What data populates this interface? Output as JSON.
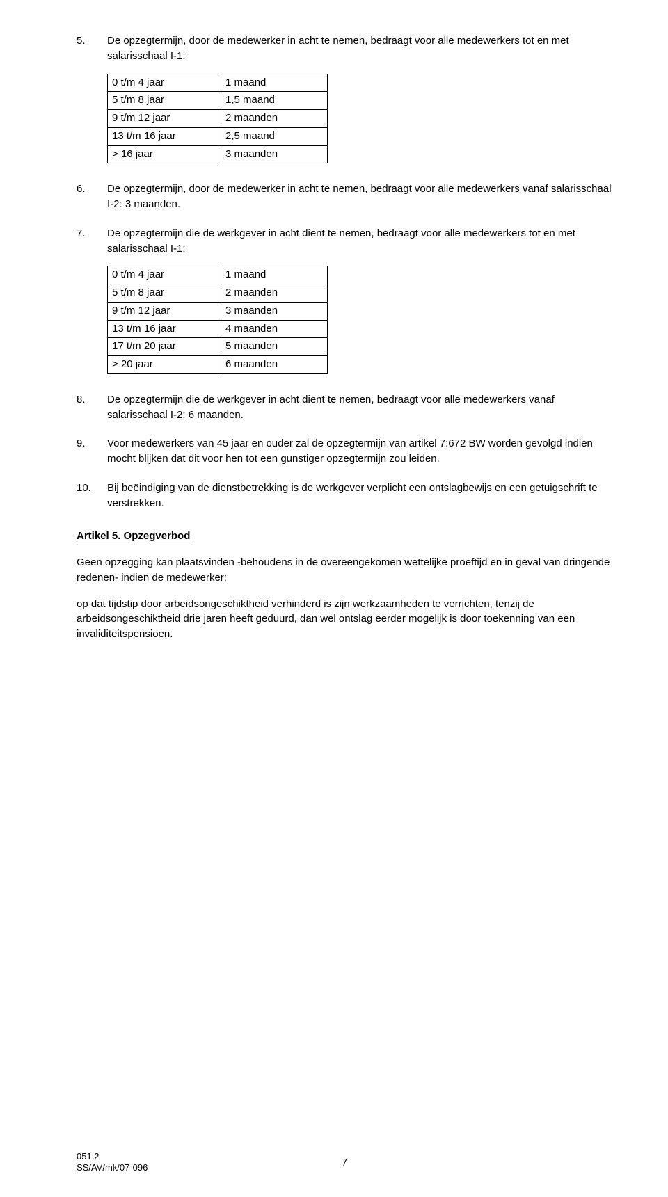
{
  "items": [
    {
      "num": "5.",
      "text": "De opzegtermijn, door de medewerker in acht te nemen, bedraagt voor alle medewerkers tot en met salarisschaal I-1:",
      "table": [
        [
          "0 t/m 4 jaar",
          "1 maand"
        ],
        [
          "5 t/m 8 jaar",
          "1,5 maand"
        ],
        [
          "9 t/m 12 jaar",
          "2 maanden"
        ],
        [
          "13 t/m 16 jaar",
          "2,5 maand"
        ],
        [
          "> 16 jaar",
          "3 maanden"
        ]
      ]
    },
    {
      "num": "6.",
      "text": "De opzegtermijn, door de medewerker in acht te nemen, bedraagt voor alle medewerkers vanaf salarisschaal I-2: 3 maanden."
    },
    {
      "num": "7.",
      "text": "De opzegtermijn die de werkgever in acht dient te nemen, bedraagt voor alle medewerkers tot en met salarisschaal I-1:",
      "table": [
        [
          "0 t/m 4 jaar",
          "1 maand"
        ],
        [
          "5 t/m 8 jaar",
          "2 maanden"
        ],
        [
          "9 t/m 12 jaar",
          "3 maanden"
        ],
        [
          "13 t/m 16 jaar",
          "4 maanden"
        ],
        [
          "17 t/m 20 jaar",
          "5 maanden"
        ],
        [
          "> 20 jaar",
          "6 maanden"
        ]
      ]
    },
    {
      "num": "8.",
      "text": "De opzegtermijn die de werkgever in acht dient te nemen, bedraagt voor alle medewerkers vanaf salarisschaal I-2: 6 maanden."
    },
    {
      "num": "9.",
      "text": "Voor medewerkers van 45 jaar en ouder zal de opzegtermijn van artikel 7:672 BW worden gevolgd indien mocht blijken dat dit voor hen tot een gunstiger opzegtermijn zou leiden."
    },
    {
      "num": "10.",
      "text": "Bij beëindiging van de dienstbetrekking is de werkgever verplicht een ontslagbewijs en een getuigschrift te verstrekken."
    }
  ],
  "section": {
    "heading": "Artikel 5. Opzegverbod",
    "paras": [
      "Geen opzegging kan plaatsvinden -behoudens in de overeengekomen wettelijke proeftijd en in geval van dringende redenen- indien de medewerker:",
      "op dat tijdstip door arbeidsongeschiktheid verhinderd is zijn werkzaamheden te verrichten, tenzij de arbeidsongeschiktheid drie jaren heeft geduurd, dan wel ontslag eerder mogelijk is door toekenning van een invaliditeitspensioen."
    ]
  },
  "footer": {
    "line1": "051.2",
    "line2": "SS/AV/mk/07-096",
    "page": "7"
  }
}
